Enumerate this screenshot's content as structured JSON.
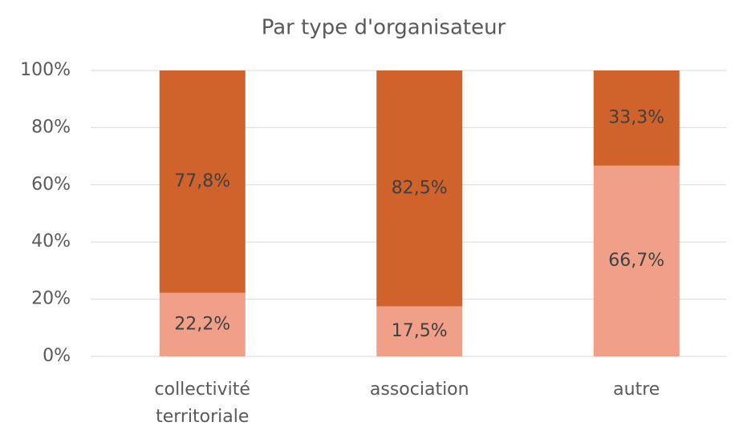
{
  "chart_data": {
    "type": "stacked_bar",
    "title": "Par type d'organisateur",
    "categories": [
      "collectivité territoriale",
      "association",
      "autre"
    ],
    "series": [
      {
        "color": "#f0a088",
        "values": [
          22.2,
          17.5,
          66.7
        ],
        "value_labels": [
          "22,2%",
          "17,5%",
          "66,7%"
        ]
      },
      {
        "color": "#d0622b",
        "values": [
          77.8,
          82.5,
          33.3
        ],
        "value_labels": [
          "77,8%",
          "82,5%",
          "33,3%"
        ]
      }
    ],
    "ylim": [
      0,
      100
    ],
    "yticks": [
      {
        "value": 0,
        "label": "0%"
      },
      {
        "value": 20,
        "label": "20%"
      },
      {
        "value": 40,
        "label": "40%"
      },
      {
        "value": 60,
        "label": "60%"
      },
      {
        "value": 80,
        "label": "80%"
      },
      {
        "value": 100,
        "label": "100%"
      }
    ],
    "grid": true
  }
}
